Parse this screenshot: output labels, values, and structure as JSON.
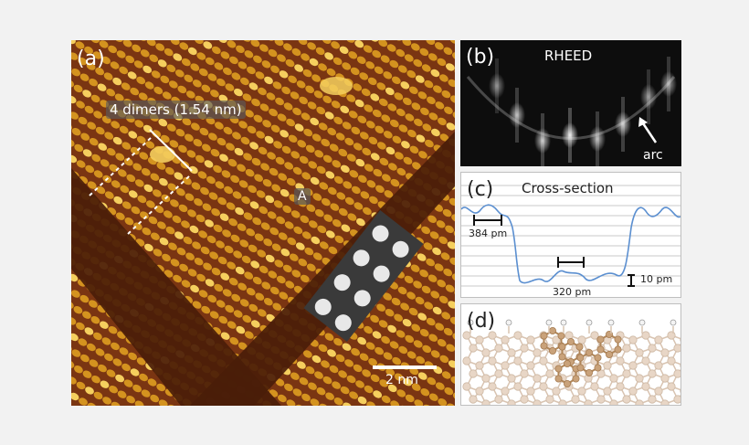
{
  "figure": {
    "panel_a": {
      "label": "(a)",
      "measure_label": "4 dimers (1.54 nm)",
      "marker_label": "A",
      "scale_label": "2 nm",
      "colors": {
        "bg": "#7a3512",
        "row": "#d4931f",
        "bright": "#f5cf5e",
        "trench": "#4a1d09"
      }
    },
    "panel_b": {
      "label": "(b)",
      "title": "RHEED",
      "arrow_label": "arc"
    },
    "panel_c": {
      "label": "(c)",
      "title": "Cross-section",
      "annotations": [
        "384 pm",
        "320 pm",
        "10 pm"
      ],
      "line_color": "#5b8fd0"
    },
    "panel_d": {
      "label": "(d)",
      "colors": {
        "substrate": "#e8d6c6",
        "adsorbate": "#c9a27a",
        "hydrogen": "#f4f4f4"
      }
    }
  }
}
